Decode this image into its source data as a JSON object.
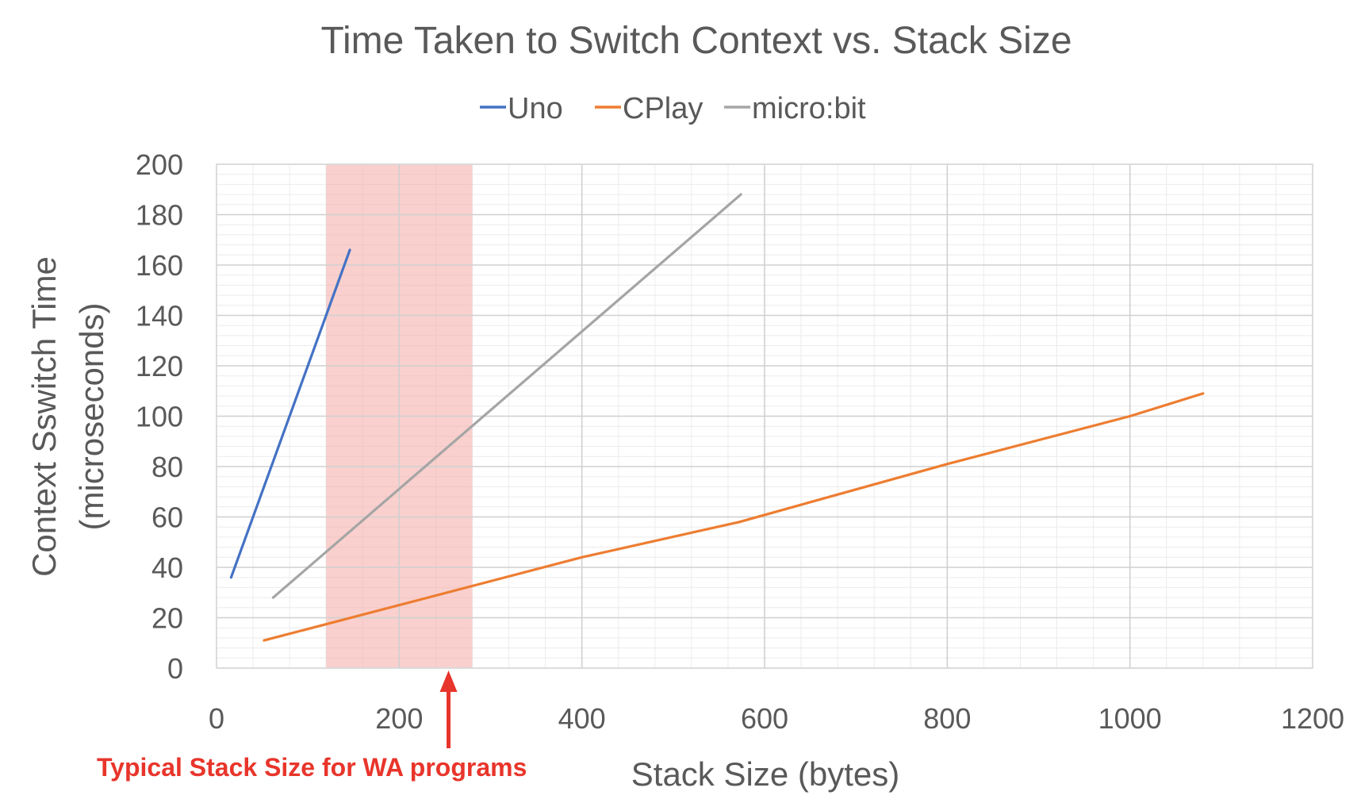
{
  "chart_data": {
    "type": "line",
    "title": "Time Taken to Switch Context vs. Stack Size",
    "xlabel": "Stack Size (bytes)",
    "ylabel_lines": [
      "Context Sswitch Time",
      "(microseconds)"
    ],
    "xlim": [
      0,
      1200
    ],
    "ylim": [
      0,
      200
    ],
    "x_ticks": [
      0,
      200,
      400,
      600,
      800,
      1000,
      1200
    ],
    "y_ticks": [
      0,
      20,
      40,
      60,
      80,
      100,
      120,
      140,
      160,
      180,
      200
    ],
    "x_minor_step": 40,
    "y_minor_step": 4,
    "grid": true,
    "legend_position": "top",
    "series": [
      {
        "name": "Uno",
        "color": "#4472c4",
        "points": [
          [
            16,
            36
          ],
          [
            146,
            166
          ]
        ]
      },
      {
        "name": "CPlay",
        "color": "#ed7d31",
        "points": [
          [
            52,
            11
          ],
          [
            200,
            25
          ],
          [
            400,
            44
          ],
          [
            572,
            58
          ],
          [
            800,
            81
          ],
          [
            1000,
            100
          ],
          [
            1080,
            109
          ]
        ]
      },
      {
        "name": "micro:bit",
        "color": "#a5a5a5",
        "points": [
          [
            62,
            28
          ],
          [
            574,
            188
          ]
        ]
      }
    ],
    "highlight_band": {
      "x_range": [
        120,
        280
      ],
      "color": "#f4a9a6"
    },
    "annotation": {
      "text": "Typical Stack Size for WA programs",
      "x": 254,
      "color": "#e8352b"
    }
  }
}
